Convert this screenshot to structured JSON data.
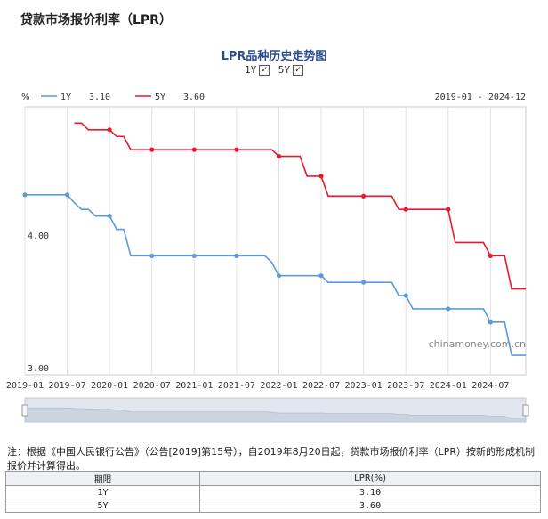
{
  "page": {
    "title": "贷款市场报价利率（LPR）"
  },
  "chart_data": {
    "type": "line",
    "title": "LPR品种历史走势图",
    "ylabel": "%",
    "date_range": "2019-01 - 2024-12",
    "ylim": [
      3.0,
      4.95
    ],
    "yticks": [
      "4.00",
      "3.00"
    ],
    "xlim": [
      "2019-01",
      "2024-12"
    ],
    "xticks": [
      "2019-01",
      "2019-07",
      "2020-01",
      "2020-07",
      "2021-01",
      "2021-07",
      "2022-01",
      "2022-07",
      "2023-01",
      "2023-07",
      "2024-01",
      "2024-07"
    ],
    "watermark": "chinamoney.com.cn",
    "grid": true,
    "legend_position": "top-left",
    "series": [
      {
        "name": "1Y",
        "latest": "3.10",
        "color": "#5b9bd9",
        "values": [
          [
            "2019-01",
            4.31
          ],
          [
            "2019-07",
            4.31
          ],
          [
            "2019-08",
            4.25
          ],
          [
            "2019-09",
            4.2
          ],
          [
            "2019-10",
            4.2
          ],
          [
            "2019-11",
            4.15
          ],
          [
            "2019-12",
            4.15
          ],
          [
            "2020-01",
            4.15
          ],
          [
            "2020-02",
            4.05
          ],
          [
            "2020-03",
            4.05
          ],
          [
            "2020-04",
            3.85
          ],
          [
            "2020-07",
            3.85
          ],
          [
            "2021-01",
            3.85
          ],
          [
            "2021-07",
            3.85
          ],
          [
            "2021-11",
            3.85
          ],
          [
            "2021-12",
            3.8
          ],
          [
            "2022-01",
            3.7
          ],
          [
            "2022-07",
            3.7
          ],
          [
            "2022-08",
            3.65
          ],
          [
            "2023-01",
            3.65
          ],
          [
            "2023-05",
            3.65
          ],
          [
            "2023-06",
            3.55
          ],
          [
            "2023-07",
            3.55
          ],
          [
            "2023-08",
            3.45
          ],
          [
            "2024-01",
            3.45
          ],
          [
            "2024-06",
            3.45
          ],
          [
            "2024-07",
            3.35
          ],
          [
            "2024-09",
            3.35
          ],
          [
            "2024-10",
            3.1
          ],
          [
            "2024-12",
            3.1
          ]
        ],
        "markers": [
          "2019-01",
          "2019-07",
          "2020-01",
          "2020-07",
          "2021-01",
          "2021-07",
          "2022-01",
          "2022-07",
          "2023-01",
          "2023-07",
          "2024-01",
          "2024-07"
        ]
      },
      {
        "name": "5Y",
        "latest": "3.60",
        "color": "#e8192c",
        "values": [
          [
            "2019-08",
            4.85
          ],
          [
            "2019-09",
            4.85
          ],
          [
            "2019-10",
            4.8
          ],
          [
            "2019-12",
            4.8
          ],
          [
            "2020-01",
            4.8
          ],
          [
            "2020-02",
            4.75
          ],
          [
            "2020-03",
            4.75
          ],
          [
            "2020-04",
            4.65
          ],
          [
            "2020-07",
            4.65
          ],
          [
            "2021-01",
            4.65
          ],
          [
            "2021-07",
            4.65
          ],
          [
            "2021-12",
            4.65
          ],
          [
            "2022-01",
            4.6
          ],
          [
            "2022-04",
            4.6
          ],
          [
            "2022-05",
            4.45
          ],
          [
            "2022-07",
            4.45
          ],
          [
            "2022-08",
            4.3
          ],
          [
            "2023-01",
            4.3
          ],
          [
            "2023-05",
            4.3
          ],
          [
            "2023-06",
            4.2
          ],
          [
            "2023-07",
            4.2
          ],
          [
            "2024-01",
            4.2
          ],
          [
            "2024-02",
            3.95
          ],
          [
            "2024-06",
            3.95
          ],
          [
            "2024-07",
            3.85
          ],
          [
            "2024-09",
            3.85
          ],
          [
            "2024-10",
            3.6
          ],
          [
            "2024-12",
            3.6
          ]
        ],
        "markers": [
          "2020-01",
          "2020-07",
          "2021-01",
          "2021-07",
          "2022-01",
          "2022-07",
          "2023-01",
          "2023-07",
          "2024-01",
          "2024-07"
        ]
      }
    ]
  },
  "toggles": [
    {
      "label": "1Y",
      "checked": "✓"
    },
    {
      "label": "5Y",
      "checked": "✓"
    }
  ],
  "note": "注：根据《中国人民银行公告》（公告[2019]第15号），自2019年8月20日起，贷款市场报价利率（LPR）按新的形成机制报价并计算得出。",
  "table": {
    "headers": [
      "期限",
      "LPR(%)"
    ],
    "rows": [
      [
        "1Y",
        "3.10"
      ],
      [
        "5Y",
        "3.60"
      ]
    ]
  }
}
